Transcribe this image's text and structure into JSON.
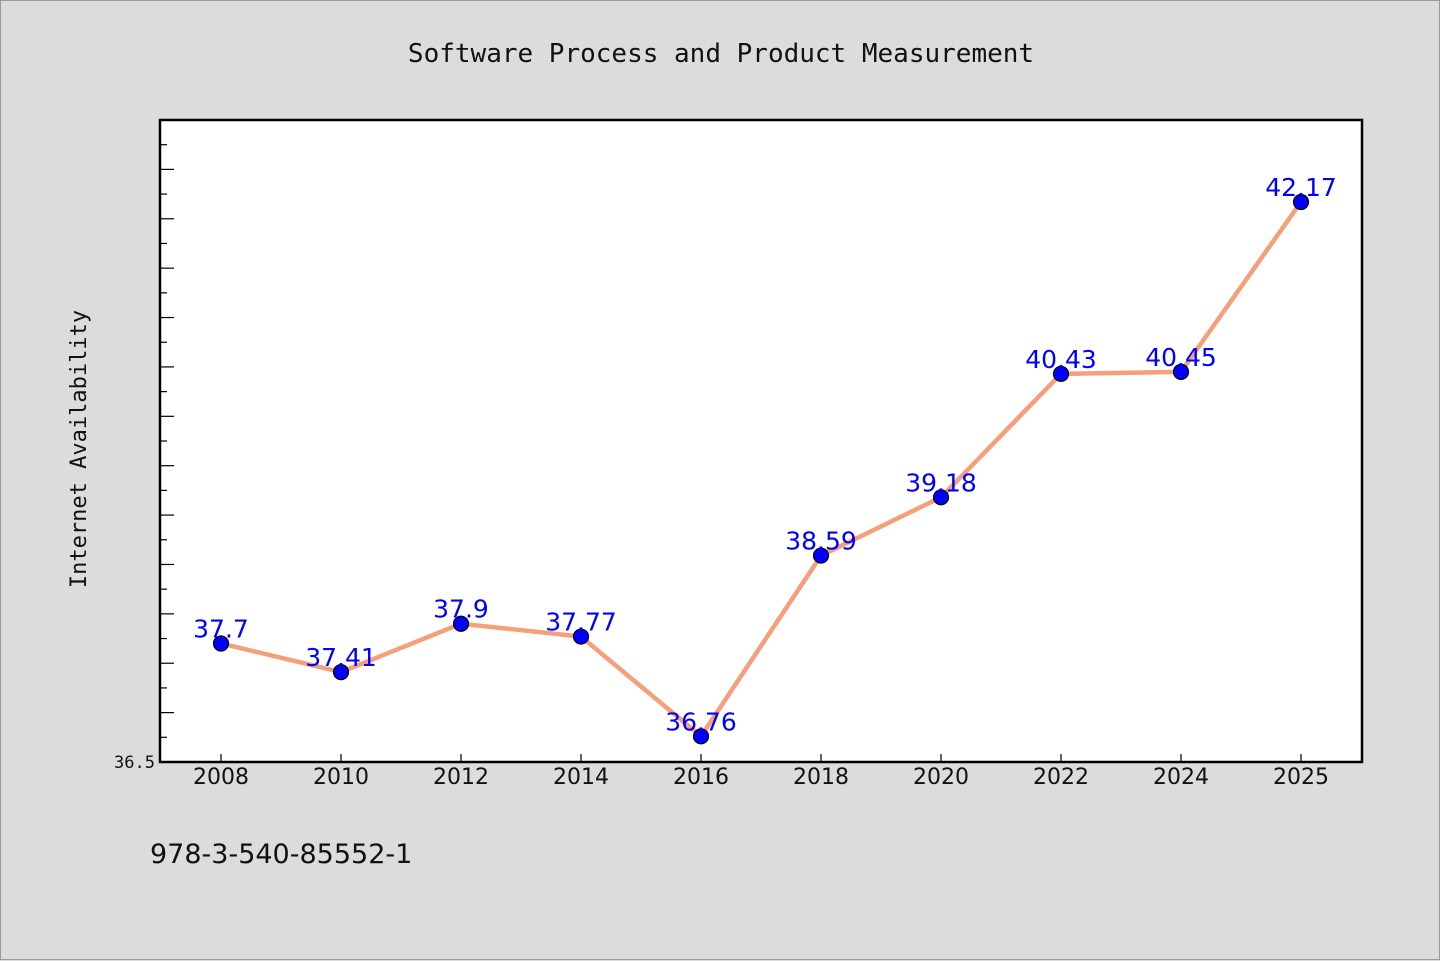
{
  "chart_data": {
    "type": "line",
    "title": "Software Process and Product Measurement",
    "xlabel": "",
    "ylabel": "Internet Availability",
    "categories": [
      "2008",
      "2010",
      "2012",
      "2014",
      "2016",
      "2018",
      "2020",
      "2022",
      "2024",
      "2025"
    ],
    "series": [
      {
        "values": [
          37.7,
          37.41,
          37.9,
          37.77,
          36.76,
          38.59,
          39.18,
          40.43,
          40.45,
          42.17
        ]
      }
    ],
    "data_labels": [
      "37.7",
      "37.41",
      "37.9",
      "37.77",
      "36.76",
      "38.59",
      "39.18",
      "40.43",
      "40.45",
      "42.17"
    ],
    "y_tick_label": "36.5",
    "ylim": [
      36.5,
      43.0
    ],
    "grid": false,
    "line_color": "#f5a07a",
    "marker_color": "#0000ff",
    "label_color": "#0000ff"
  },
  "footer": {
    "text": "978-3-540-85552-1"
  }
}
